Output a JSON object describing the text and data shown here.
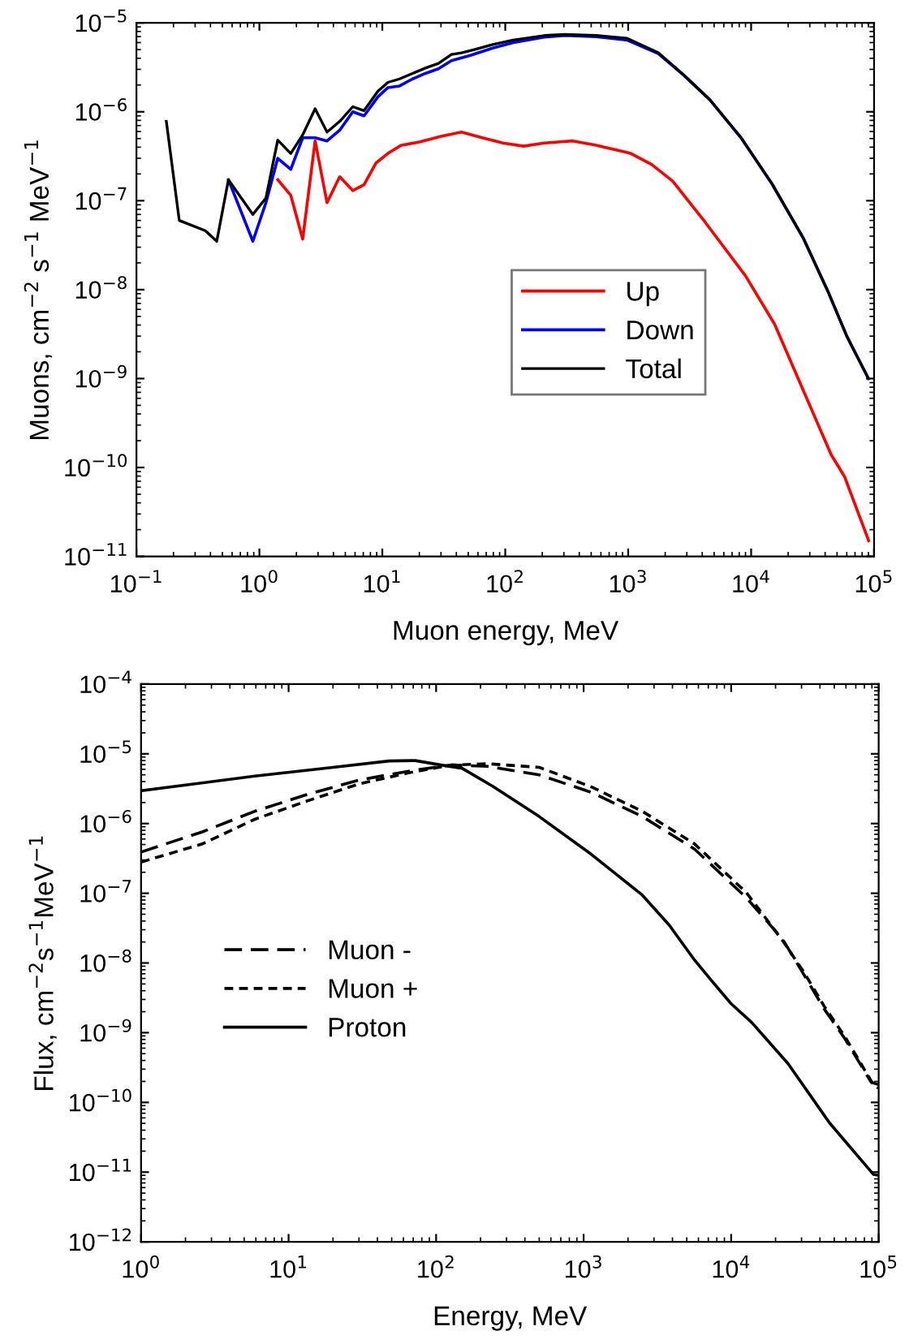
{
  "chart_data": [
    {
      "type": "line",
      "xlabel": "Muon energy, MeV",
      "ylabel": "Muons, cm$^{−2}$ s$^{−1}$ MeV$^{−1}$",
      "log": "xy",
      "grid": false,
      "legend": "center right",
      "marker": "none",
      "xlim": [
        0.1,
        100000
      ],
      "ylim": [
        1e-11,
        1e-05
      ],
      "xticks": [
        {
          "value": 0.1,
          "label": "10$^{−1}$"
        },
        {
          "value": 1,
          "label": "10$^{0}$"
        },
        {
          "value": 10,
          "label": "10$^{1}$"
        },
        {
          "value": 100,
          "label": "10$^{2}$"
        },
        {
          "value": 1000,
          "label": "10$^{3}$"
        },
        {
          "value": 10000,
          "label": "10$^{4}$"
        },
        {
          "value": 100000,
          "label": "10$^{5}$"
        }
      ],
      "yticks": [
        {
          "value": 1e-11,
          "label": "10$^{−11}$"
        },
        {
          "value": 1e-10,
          "label": "10$^{−10}$"
        },
        {
          "value": 1e-09,
          "label": "10$^{−9}$"
        },
        {
          "value": 1e-08,
          "label": "10$^{−8}$"
        },
        {
          "value": 1e-07,
          "label": "10$^{−7}$"
        },
        {
          "value": 1e-06,
          "label": "10$^{−6}$"
        },
        {
          "value": 1e-05,
          "label": "10$^{−5}$"
        }
      ],
      "series": [
        {
          "name": "Up",
          "color": "#ff0000",
          "line_style": "solid",
          "x": [
            1.41,
            1.8,
            2.25,
            2.84,
            3.55,
            4.5,
            5.75,
            7.1,
            8.9,
            11.1,
            14.1,
            20.3,
            30,
            44,
            65,
            96,
            141,
            208,
            354,
            550,
            1050,
            1550,
            2300,
            4200,
            9000,
            15500,
            26300,
            44700,
            57500,
            90400
          ],
          "values": [
            1.72e-07,
            1.15e-07,
            3.7e-08,
            4.7e-07,
            9.5e-08,
            1.86e-07,
            1.3e-07,
            1.51e-07,
            2.66e-07,
            3.4e-07,
            4.17e-07,
            4.6e-07,
            5.3e-07,
            5.9e-07,
            5.1e-07,
            4.45e-07,
            4.1e-07,
            4.45e-07,
            4.7e-07,
            4.2e-07,
            3.4e-07,
            2.56e-07,
            1.66e-07,
            5.8e-08,
            1.43e-08,
            4.1e-09,
            7.6e-10,
            1.4e-10,
            7.9e-11,
            1.5e-11
          ]
        },
        {
          "name": "Down",
          "color": "#0000ff",
          "line_style": "solid",
          "x": [
            0.56,
            0.885,
            1.13,
            1.41,
            1.8,
            2.25,
            2.84,
            3.55,
            4.5,
            5.75,
            7.1,
            9.2,
            11.1,
            13.8,
            17.6,
            22.4,
            28.6,
            36.5,
            52,
            79,
            116,
            208,
            306,
            550,
            980,
            1760,
            2850,
            4620,
            8280,
            14800,
            26500,
            42600,
            60000,
            90000
          ],
          "values": [
            1.72e-07,
            3.5e-08,
            9.5e-08,
            3e-07,
            2.25e-07,
            5.1e-07,
            5.1e-07,
            4.7e-07,
            6.2e-07,
            1e-06,
            9e-07,
            1.47e-06,
            1.87e-06,
            1.95e-06,
            2.34e-06,
            2.7e-06,
            3.04e-06,
            3.75e-06,
            4.3e-06,
            5.2e-06,
            6e-06,
            6.9e-06,
            7.2e-06,
            7e-06,
            6.4e-06,
            4.5e-06,
            2.55e-06,
            1.36e-06,
            5.1e-07,
            1.54e-07,
            3.8e-08,
            9.2e-09,
            3e-09,
            1e-09
          ]
        },
        {
          "name": "Total",
          "color": "#000000",
          "line_style": "solid",
          "x": [
            0.175,
            0.223,
            0.363,
            0.45,
            0.56,
            0.885,
            1.13,
            1.41,
            1.8,
            2.25,
            2.84,
            3.55,
            4.5,
            5.75,
            7.1,
            9.2,
            11.1,
            13.8,
            17.6,
            22.4,
            28.6,
            36.5,
            44,
            56,
            79,
            116,
            208,
            306,
            550,
            980,
            1760,
            2850,
            4620,
            8280,
            14800,
            26500,
            42600,
            60000,
            90000
          ],
          "values": [
            7.8e-07,
            6e-08,
            4.6e-08,
            3.5e-08,
            1.72e-07,
            7e-08,
            1.07e-07,
            4.8e-07,
            3.4e-07,
            5.5e-07,
            1.08e-06,
            5.9e-07,
            7.8e-07,
            1.14e-06,
            1.03e-06,
            1.7e-06,
            2.14e-06,
            2.34e-06,
            2.7e-06,
            3.1e-06,
            3.5e-06,
            4.4e-06,
            4.6e-06,
            5e-06,
            5.7e-06,
            6.4e-06,
            7.2e-06,
            7.4e-06,
            7.2e-06,
            6.7e-06,
            4.6e-06,
            2.57e-06,
            1.37e-06,
            5.1e-07,
            1.55e-07,
            3.85e-08,
            9.3e-09,
            3e-09,
            1e-09
          ]
        }
      ]
    },
    {
      "type": "line",
      "xlabel": "Energy, MeV",
      "ylabel": "Flux, cm$^{−2}$s$^{−1}$MeV$^{−1}$",
      "log": "xy",
      "grid": false,
      "legend": "center left",
      "marker": "none",
      "xlim": [
        1,
        100000
      ],
      "ylim": [
        1e-12,
        0.0001
      ],
      "xticks": [
        {
          "value": 1,
          "label": "10$^{0}$"
        },
        {
          "value": 10,
          "label": "10$^{1}$"
        },
        {
          "value": 100,
          "label": "10$^{2}$"
        },
        {
          "value": 1000,
          "label": "10$^{3}$"
        },
        {
          "value": 10000,
          "label": "10$^{4}$"
        },
        {
          "value": 100000,
          "label": "10$^{5}$"
        }
      ],
      "yticks": [
        {
          "value": 1e-12,
          "label": "10$^{−12}$"
        },
        {
          "value": 1e-11,
          "label": "10$^{−11}$"
        },
        {
          "value": 1e-10,
          "label": "10$^{−10}$"
        },
        {
          "value": 1e-09,
          "label": "10$^{−9}$"
        },
        {
          "value": 1e-08,
          "label": "10$^{−8}$"
        },
        {
          "value": 1e-07,
          "label": "10$^{−7}$"
        },
        {
          "value": 1e-06,
          "label": "10$^{−6}$"
        },
        {
          "value": 1e-05,
          "label": "10$^{−5}$"
        },
        {
          "value": 0.0001,
          "label": "10$^{−4}$"
        }
      ],
      "series": [
        {
          "name": "Muon -",
          "color": "#000000",
          "line_style": "dashed",
          "x": [
            1,
            2.6,
            5.9,
            13.3,
            30,
            67,
            127,
            224,
            500,
            1130,
            2500,
            5650,
            12700,
            22300,
            31000,
            42700,
            59000,
            89000,
            100000
          ],
          "values": [
            3.9e-07,
            7.6e-07,
            1.5e-06,
            2.6e-06,
            4.2e-06,
            5.7e-06,
            6.9e-06,
            6.6e-06,
            5e-06,
            2.8e-06,
            1.26e-06,
            4.3e-07,
            8.6e-08,
            2.2e-08,
            6.9e-09,
            2.2e-09,
            8.2e-10,
            1.95e-10,
            1.8e-10
          ]
        },
        {
          "name": "Muon +",
          "color": "#000000",
          "line_style": "dotted",
          "x": [
            1,
            2.6,
            5.9,
            13.3,
            30,
            67,
            127,
            224,
            500,
            1130,
            2500,
            5650,
            12700,
            22300,
            31000,
            42700,
            59000,
            92000,
            100000
          ],
          "values": [
            2.8e-07,
            5.1e-07,
            1.15e-06,
            2.1e-06,
            3.7e-06,
            5.4e-06,
            6.9e-06,
            7.2e-06,
            6.4e-06,
            3.35e-06,
            1.5e-06,
            5.1e-07,
            1.02e-07,
            2.1e-08,
            7.5e-09,
            2.4e-09,
            8.8e-10,
            1.8e-10,
            1.6e-10
          ]
        },
        {
          "name": "Proton",
          "color": "#000000",
          "line_style": "solid",
          "x": [
            1,
            5.9,
            20,
            48,
            72,
            108,
            150,
            243,
            500,
            1130,
            2500,
            3800,
            5650,
            7200,
            10000,
            13800,
            24300,
            46400,
            92000,
            100000
          ],
          "values": [
            2.95e-06,
            4.8e-06,
            6.4e-06,
            7.9e-06,
            8e-06,
            6.9e-06,
            6.2e-06,
            3.4e-06,
            1.26e-06,
            3.6e-07,
            9.4e-08,
            3.5e-08,
            1.1e-08,
            5.9e-09,
            2.6e-09,
            1.4e-09,
            3.6e-10,
            5.1e-11,
            9.3e-12,
            9e-12
          ]
        }
      ]
    }
  ]
}
